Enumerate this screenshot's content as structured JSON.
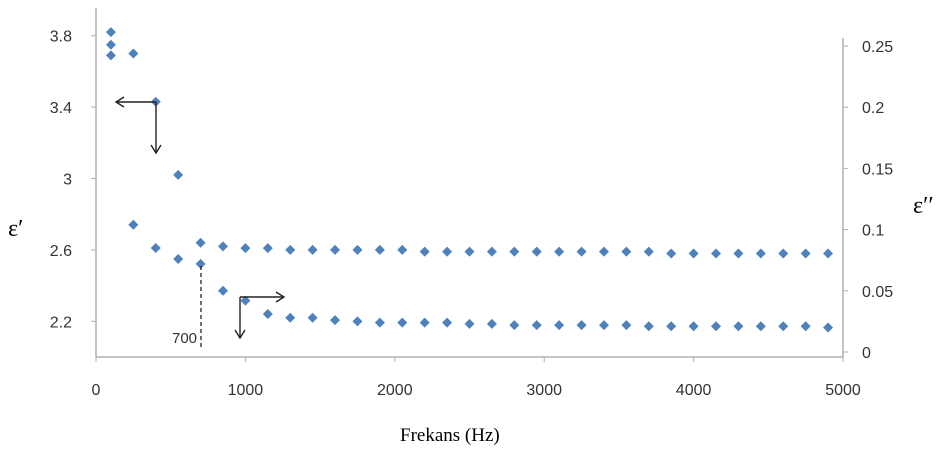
{
  "chart_data": {
    "type": "scatter",
    "title": "",
    "xlabel": "Frekans (Hz)",
    "ylabel_left": "ε′",
    "ylabel_right": "ε′′",
    "xlim": [
      0,
      5000
    ],
    "ylim_left": [
      2.0,
      4.0
    ],
    "ylim_right": [
      0,
      0.26
    ],
    "xticks": [
      "0",
      "1000",
      "2000",
      "3000",
      "4000",
      "5000"
    ],
    "yticks_left": [
      "2.2",
      "2.6",
      "3",
      "3.4",
      "3.8"
    ],
    "yticks_right": [
      "0",
      "0.05",
      "0.1",
      "0.15",
      "0.2",
      "0.25"
    ],
    "grid": false,
    "marker_color": "#4f81bd",
    "series": [
      {
        "axis": "left",
        "x": [
          100,
          250,
          400,
          550,
          700,
          850,
          1000,
          1150,
          1300,
          1450,
          1600,
          1750,
          1900,
          2050,
          2200,
          2350,
          2500,
          2650,
          2800,
          2950,
          3100,
          3250,
          3400,
          3550,
          3700,
          3850,
          4000,
          4150,
          4300,
          4450,
          4600,
          4750,
          4900
        ],
        "y": [
          3.69,
          3.7,
          3.43,
          3.02,
          2.64,
          2.62,
          2.61,
          2.61,
          2.6,
          2.6,
          2.6,
          2.6,
          2.6,
          2.6,
          2.59,
          2.59,
          2.59,
          2.59,
          2.59,
          2.59,
          2.59,
          2.59,
          2.59,
          2.59,
          2.59,
          2.58,
          2.58,
          2.58,
          2.58,
          2.58,
          2.58,
          2.58,
          2.58
        ]
      },
      {
        "axis": "right",
        "x": [
          100,
          250,
          400,
          550,
          700,
          850,
          1000,
          1150,
          1300,
          1450,
          1600,
          1750,
          1900,
          2050,
          2200,
          2350,
          2500,
          2650,
          2800,
          2950,
          3100,
          3250,
          3400,
          3550,
          3700,
          3850,
          4000,
          4150,
          4300,
          4450,
          4600,
          4750,
          4900
        ],
        "y": [
          0.251,
          0.104,
          0.085,
          0.076,
          0.072,
          0.05,
          0.042,
          0.031,
          0.028,
          0.028,
          0.026,
          0.025,
          0.024,
          0.024,
          0.024,
          0.024,
          0.023,
          0.023,
          0.022,
          0.022,
          0.022,
          0.022,
          0.022,
          0.022,
          0.021,
          0.021,
          0.021,
          0.021,
          0.021,
          0.021,
          0.021,
          0.021,
          0.02
        ]
      }
    ],
    "annotations": [
      {
        "text": "700",
        "x": 700
      }
    ]
  }
}
